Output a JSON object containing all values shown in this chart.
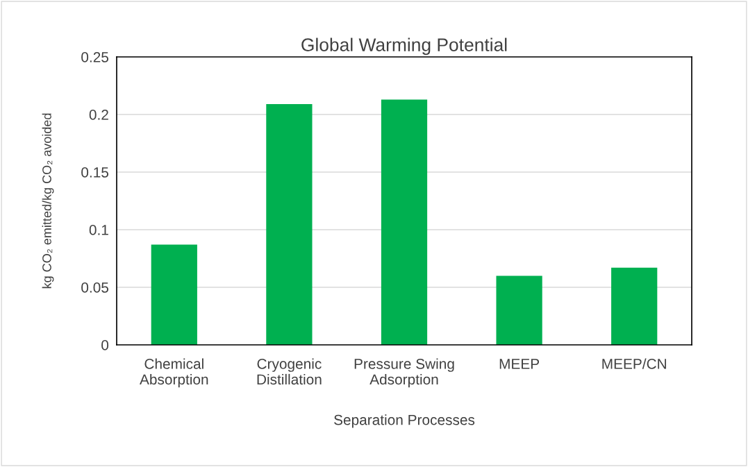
{
  "chart_data": {
    "type": "bar",
    "title": "Global Warming Potential",
    "xlabel": "Separation Processes",
    "ylabel": "kg CO₂ emitted/kg CO₂ avoided",
    "categories": [
      "Chemical\nAbsorption",
      "Cryogenic\nDistillation",
      "Pressure Swing\nAdsorption",
      "MEEP",
      "MEEP/CN"
    ],
    "values": [
      0.087,
      0.209,
      0.213,
      0.06,
      0.067
    ],
    "color": "#00b050",
    "ylim": [
      0,
      0.25
    ],
    "yticks": [
      0,
      0.05,
      0.1,
      0.15,
      0.2,
      0.25
    ],
    "grid": "y",
    "legend": false
  }
}
